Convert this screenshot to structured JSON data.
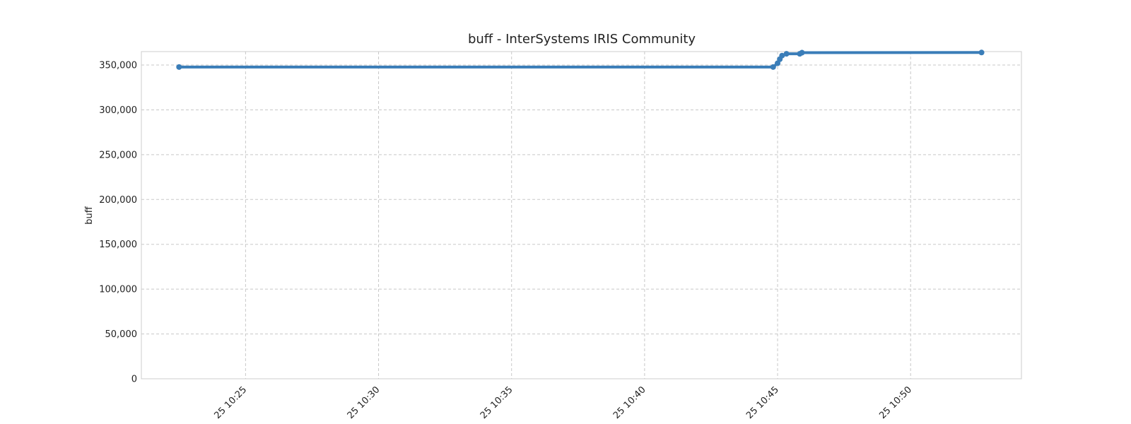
{
  "chart_data": {
    "type": "line",
    "title": "buff - InterSystems IRIS Community",
    "xlabel": "",
    "ylabel": "buff",
    "x_range": [
      "2021-??-25 10:21:05",
      "2021-??-25 10:54:10"
    ],
    "ylim": [
      0,
      365000
    ],
    "yticks": [
      0,
      50000,
      100000,
      150000,
      200000,
      250000,
      300000,
      350000
    ],
    "ytick_labels": [
      "0",
      "50,000",
      "100,000",
      "150,000",
      "200,000",
      "250,000",
      "300,000",
      "350,000"
    ],
    "xticks": [
      "10:25",
      "10:30",
      "10:35",
      "10:40",
      "10:45",
      "10:50"
    ],
    "xtick_labels": [
      "25 10:25",
      "25 10:30",
      "25 10:35",
      "25 10:40",
      "25 10:45",
      "25 10:50"
    ],
    "grid": true,
    "color": "#3a7db8",
    "series": [
      {
        "name": "",
        "points": [
          [
            "10:22:30",
            347800
          ],
          [
            "10:44:50",
            347800
          ],
          [
            "10:45:00",
            352000
          ],
          [
            "10:45:05",
            356500
          ],
          [
            "10:45:10",
            360500
          ],
          [
            "10:45:20",
            362500
          ],
          [
            "10:45:50",
            362500
          ],
          [
            "10:45:55",
            363800
          ],
          [
            "10:52:40",
            364000
          ]
        ]
      }
    ]
  }
}
